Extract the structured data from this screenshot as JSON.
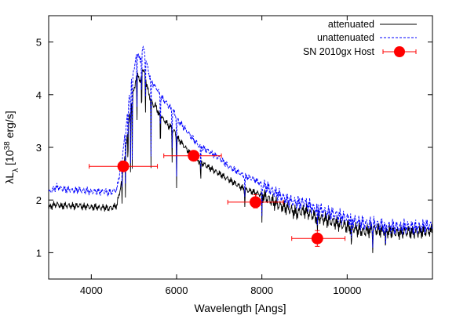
{
  "chart_data": {
    "type": "line",
    "xlabel": "Wavelength [Angs]",
    "ylabel": {
      "pre": "λL",
      "sub": "λ",
      "mid": " [10",
      "sup": "38",
      "post": " erg/s]"
    },
    "xlim": [
      3000,
      12000
    ],
    "ylim": [
      0.5,
      5.5
    ],
    "xticks": [
      4000,
      6000,
      8000,
      10000
    ],
    "yticks": [
      1,
      2,
      3,
      4,
      5
    ],
    "grid": false,
    "legend_position": "top-right",
    "series": [
      {
        "name": "attenuated",
        "color": "#000000",
        "style": "solid",
        "x": [
          3000,
          3100,
          3200,
          3300,
          3400,
          3500,
          3600,
          3700,
          3800,
          3900,
          4000,
          4100,
          4200,
          4300,
          4400,
          4500,
          4600,
          4700,
          4800,
          4850,
          4900,
          4950,
          5000,
          5050,
          5100,
          5150,
          5200,
          5250,
          5300,
          5350,
          5400,
          5450,
          5500,
          5550,
          5600,
          5650,
          5700,
          5750,
          5800,
          5850,
          5900,
          5950,
          6000,
          6100,
          6200,
          6300,
          6400,
          6500,
          6600,
          6700,
          6800,
          6900,
          7000,
          7200,
          7400,
          7600,
          7800,
          8000,
          8200,
          8400,
          8600,
          8800,
          9000,
          9200,
          9400,
          9600,
          9800,
          10000,
          10200,
          10400,
          10600,
          10800,
          11000,
          11200,
          11400,
          11600,
          11800,
          12000
        ],
        "y": [
          1.85,
          1.9,
          1.92,
          1.88,
          1.9,
          1.89,
          1.88,
          1.9,
          1.87,
          1.88,
          1.86,
          1.87,
          1.85,
          1.86,
          1.84,
          1.86,
          1.9,
          2.3,
          2.9,
          3.3,
          3.6,
          3.9,
          4.1,
          4.3,
          4.4,
          4.2,
          4.5,
          4.4,
          4.2,
          4.0,
          3.9,
          3.8,
          3.8,
          3.7,
          3.6,
          3.6,
          3.5,
          3.5,
          3.4,
          3.4,
          3.35,
          3.3,
          3.2,
          3.1,
          3.0,
          2.9,
          2.8,
          2.75,
          2.7,
          2.65,
          2.6,
          2.55,
          2.5,
          2.4,
          2.3,
          2.2,
          2.15,
          2.1,
          2.0,
          1.9,
          1.85,
          1.75,
          1.8,
          1.7,
          1.65,
          1.6,
          1.55,
          1.5,
          1.45,
          1.4,
          1.45,
          1.42,
          1.4,
          1.38,
          1.4,
          1.38,
          1.4,
          1.42
        ]
      },
      {
        "name": "unattenuated",
        "color": "#0000ff",
        "style": "dashed",
        "x": [
          3000,
          3100,
          3200,
          3300,
          3400,
          3500,
          3600,
          3700,
          3800,
          3900,
          4000,
          4100,
          4200,
          4300,
          4400,
          4500,
          4600,
          4700,
          4800,
          4850,
          4900,
          4950,
          5000,
          5050,
          5100,
          5150,
          5200,
          5250,
          5300,
          5350,
          5400,
          5450,
          5500,
          5550,
          5600,
          5650,
          5700,
          5750,
          5800,
          5850,
          5900,
          5950,
          6000,
          6100,
          6200,
          6300,
          6400,
          6500,
          6600,
          6700,
          6800,
          6900,
          7000,
          7200,
          7400,
          7600,
          7800,
          8000,
          8200,
          8400,
          8600,
          8800,
          9000,
          9200,
          9400,
          9600,
          9800,
          10000,
          10200,
          10400,
          10600,
          10800,
          11000,
          11200,
          11400,
          11600,
          11800,
          12000
        ],
        "y": [
          2.15,
          2.2,
          2.25,
          2.22,
          2.2,
          2.2,
          2.18,
          2.2,
          2.17,
          2.18,
          2.15,
          2.17,
          2.15,
          2.17,
          2.14,
          2.16,
          2.2,
          2.7,
          3.3,
          3.7,
          4.0,
          4.3,
          4.5,
          4.7,
          4.8,
          4.6,
          4.9,
          4.8,
          4.6,
          4.4,
          4.3,
          4.2,
          4.15,
          4.1,
          4.0,
          3.95,
          3.9,
          3.85,
          3.8,
          3.75,
          3.7,
          3.65,
          3.55,
          3.45,
          3.35,
          3.25,
          3.15,
          3.05,
          3.0,
          2.95,
          2.9,
          2.85,
          2.8,
          2.65,
          2.55,
          2.45,
          2.4,
          2.3,
          2.2,
          2.1,
          2.0,
          1.95,
          1.95,
          1.85,
          1.8,
          1.75,
          1.7,
          1.65,
          1.6,
          1.55,
          1.55,
          1.52,
          1.5,
          1.48,
          1.5,
          1.48,
          1.5,
          1.52
        ]
      }
    ],
    "absorption_lines": [
      {
        "x": 4720,
        "depth": 0.6
      },
      {
        "x": 4800,
        "depth": 1.0
      },
      {
        "x": 4860,
        "depth": 0.9
      },
      {
        "x": 4920,
        "depth": 1.4
      },
      {
        "x": 4960,
        "depth": 1.6
      },
      {
        "x": 5070,
        "depth": 1.2
      },
      {
        "x": 5180,
        "depth": 1.0
      },
      {
        "x": 5270,
        "depth": 0.9
      },
      {
        "x": 5400,
        "depth": 1.5
      },
      {
        "x": 5620,
        "depth": 0.8
      },
      {
        "x": 5895,
        "depth": 0.8
      },
      {
        "x": 6000,
        "depth": 1.1
      },
      {
        "x": 6565,
        "depth": 0.6
      },
      {
        "x": 7600,
        "depth": 0.4
      },
      {
        "x": 8000,
        "depth": 0.6
      },
      {
        "x": 9300,
        "depth": 0.5
      },
      {
        "x": 10100,
        "depth": 0.6
      },
      {
        "x": 10600,
        "depth": 0.5
      },
      {
        "x": 10900,
        "depth": 0.6
      }
    ],
    "points": {
      "name": "SN 2010gx Host",
      "color": "#ff0000",
      "data": [
        {
          "x": 4750,
          "y": 2.64,
          "xerr": [
            3950,
            5550
          ],
          "yerr": [
            2.6,
            2.7
          ]
        },
        {
          "x": 6400,
          "y": 2.84,
          "xerr": [
            5700,
            7050
          ],
          "yerr": [
            2.78,
            2.9
          ]
        },
        {
          "x": 7850,
          "y": 1.96,
          "xerr": [
            7200,
            8500
          ],
          "yerr": [
            1.85,
            2.1
          ]
        },
        {
          "x": 9300,
          "y": 1.27,
          "xerr": [
            8700,
            9950
          ],
          "yerr": [
            1.12,
            1.42
          ]
        }
      ]
    }
  }
}
